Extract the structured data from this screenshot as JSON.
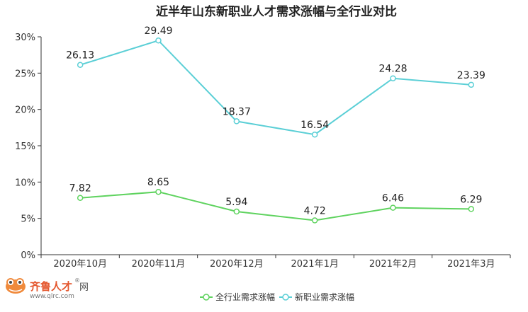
{
  "chart_data": {
    "type": "line",
    "title": "近半年山东新职业人才需求涨幅与全行业对比",
    "categories": [
      "2020年10月",
      "2020年11月",
      "2020年12月",
      "2021年1月",
      "2021年2月",
      "2021年3月"
    ],
    "yticks": [
      "0%",
      "5%",
      "10%",
      "15%",
      "20%",
      "25%",
      "30%"
    ],
    "ylim": [
      0,
      30
    ],
    "grid": false,
    "legend_position": "bottom-center",
    "series": [
      {
        "name": "全行业需求涨幅",
        "color": "#5fd35f",
        "values": [
          7.82,
          8.65,
          5.94,
          4.72,
          6.46,
          6.29
        ],
        "labels": [
          "7.82",
          "8.65",
          "5.94",
          "4.72",
          "6.46",
          "6.29"
        ]
      },
      {
        "name": "新职业需求涨幅",
        "color": "#5bcfd6",
        "values": [
          26.13,
          29.49,
          18.37,
          16.54,
          24.28,
          23.39
        ],
        "labels": [
          "26.13",
          "29.49",
          "18.37",
          "16.54",
          "24.28",
          "23.39"
        ]
      }
    ]
  },
  "watermark": {
    "brand": "齐鲁人才",
    "suffix": "网",
    "reg": "®",
    "url": "www.qlrc.com"
  }
}
